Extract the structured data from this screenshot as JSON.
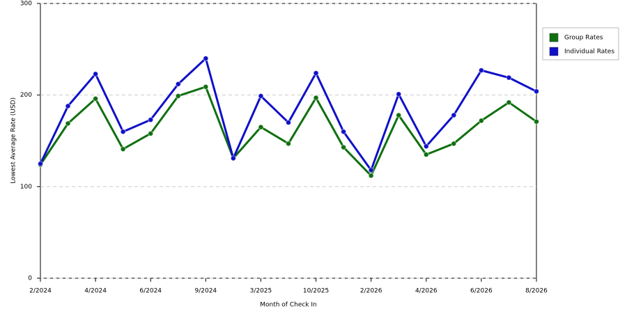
{
  "chart_data": {
    "type": "line",
    "x_label": "Month of Check In",
    "y_label": "Lowest Average Rate (USD)",
    "categories": [
      "2/2024",
      null,
      "4/2024",
      null,
      "6/2024",
      null,
      "9/2024",
      null,
      "3/2025",
      null,
      "10/2025",
      null,
      "2/2026",
      null,
      "4/2026",
      null,
      "6/2026",
      null,
      "8/2026"
    ],
    "series": [
      {
        "name": "Group Rates",
        "color": "#107010",
        "values": [
          124,
          169,
          196,
          141,
          158,
          199,
          209,
          131,
          165,
          147,
          197,
          143,
          112,
          178,
          135,
          147,
          172,
          192,
          171
        ]
      },
      {
        "name": "Individual Rates",
        "color": "#1010c8",
        "values": [
          125,
          188,
          223,
          160,
          173,
          212,
          240,
          131,
          199,
          170,
          224,
          160,
          118,
          201,
          144,
          178,
          227,
          219,
          204
        ]
      }
    ],
    "ylim": [
      0,
      300
    ],
    "yticks": [
      0,
      100,
      200,
      300
    ],
    "grid": true,
    "legend": "right"
  }
}
